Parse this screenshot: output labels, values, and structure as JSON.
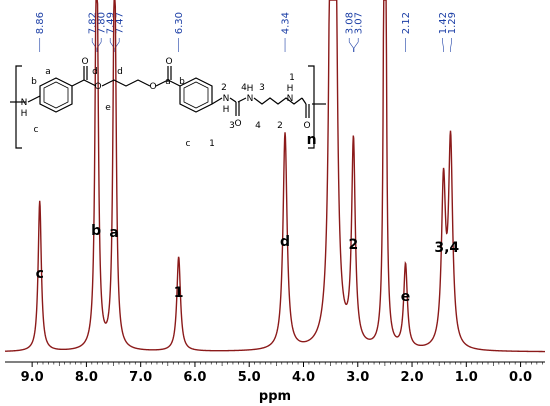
{
  "chart_data": {
    "type": "line",
    "title": "",
    "xlabel": "ppm",
    "ylabel": "",
    "x_reversed": true,
    "xlim": [
      9.5,
      -0.45
    ],
    "x_ticks": [
      "9.0",
      "8.0",
      "7.0",
      "6.0",
      "5.0",
      "4.0",
      "3.0",
      "2.0",
      "1.0",
      "0.0"
    ],
    "x_tick_values": [
      9.0,
      8.0,
      7.0,
      6.0,
      5.0,
      4.0,
      3.0,
      2.0,
      1.0,
      0.0
    ],
    "peak_list": [
      {
        "label": "8.86",
        "ppm": 8.86
      },
      {
        "label": "7.82",
        "ppm": 7.82
      },
      {
        "label": "7.80",
        "ppm": 7.8
      },
      {
        "label": "7.49",
        "ppm": 7.49
      },
      {
        "label": "7.47",
        "ppm": 7.47
      },
      {
        "label": "6.30",
        "ppm": 6.3
      },
      {
        "label": "4.34",
        "ppm": 4.34
      },
      {
        "label": "3.08",
        "ppm": 3.08
      },
      {
        "label": "3.07",
        "ppm": 3.07
      },
      {
        "label": "2.12",
        "ppm": 2.12
      },
      {
        "label": "1.42",
        "ppm": 1.42
      },
      {
        "label": "1.29",
        "ppm": 1.29
      }
    ],
    "series": [
      {
        "color": "#8b1a1a",
        "baseline": 0.0,
        "peaks": [
          {
            "ppm": 8.86,
            "height": 0.215,
            "width": 0.035,
            "assign": "c"
          },
          {
            "ppm": 7.82,
            "height": 0.35,
            "width": 0.03,
            "assign": "b"
          },
          {
            "ppm": 7.8,
            "height": 0.3,
            "width": 0.03,
            "assign": ""
          },
          {
            "ppm": 7.49,
            "height": 0.33,
            "width": 0.03,
            "assign": "a"
          },
          {
            "ppm": 7.47,
            "height": 0.28,
            "width": 0.03,
            "assign": ""
          },
          {
            "ppm": 6.3,
            "height": 0.135,
            "width": 0.04,
            "assign": "1"
          },
          {
            "ppm": 4.34,
            "height": 0.31,
            "width": 0.045,
            "assign": "d"
          },
          {
            "ppm": 3.48,
            "height": 1.2,
            "width": 0.035,
            "assign": ""
          },
          {
            "ppm": 3.42,
            "height": 0.6,
            "width": 0.04,
            "assign": ""
          },
          {
            "ppm": 3.08,
            "height": 0.29,
            "width": 0.04,
            "assign": "2"
          },
          {
            "ppm": 2.5,
            "height": 1.3,
            "width": 0.02,
            "assign": ""
          },
          {
            "ppm": 2.12,
            "height": 0.12,
            "width": 0.04,
            "assign": "e"
          },
          {
            "ppm": 1.42,
            "height": 0.23,
            "width": 0.045,
            "assign": "3,4"
          },
          {
            "ppm": 1.29,
            "height": 0.29,
            "width": 0.045,
            "assign": ""
          }
        ]
      }
    ],
    "assignment_labels": [
      {
        "text": "c",
        "ppm": 8.86
      },
      {
        "text": "b",
        "ppm": 7.82
      },
      {
        "text": "a",
        "ppm": 7.49
      },
      {
        "text": "1",
        "ppm": 6.3
      },
      {
        "text": "d",
        "ppm": 4.34
      },
      {
        "text": "n",
        "ppm": 3.85
      },
      {
        "text": "2",
        "ppm": 3.08
      },
      {
        "text": "e",
        "ppm": 2.12
      },
      {
        "text": "3,4",
        "ppm": 1.36
      }
    ]
  },
  "structure": {
    "atom_labels": {
      "nh_left": "N",
      "h_left": "H",
      "nh_amide1": "N",
      "h_amide1": "H",
      "nh_amide2": "N",
      "h_amide2": "H",
      "nh_right": "N",
      "h_right": "H",
      "o": "O"
    },
    "position_labels": {
      "b_left": "b",
      "a_left": "a",
      "c_left": "c",
      "d1": "d",
      "d2": "d",
      "e": "e",
      "a_right": "a",
      "b_right": "b",
      "c_right": "c",
      "one_below": "1",
      "two_top": "2",
      "three_bottom": "3",
      "four_top": "4",
      "three_top": "3",
      "four_bottom": "4",
      "two_bottom": "2",
      "one_top": "1"
    }
  }
}
